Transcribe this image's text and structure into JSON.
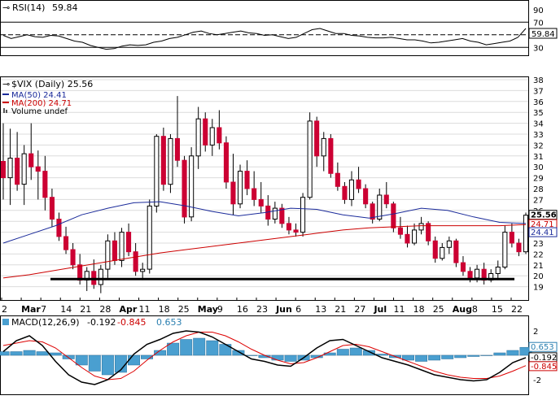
{
  "colors": {
    "up_candle": "#ffffff",
    "down_candle": "#cc0033",
    "wick": "#000000",
    "ma50": "#1a2a9a",
    "ma200": "#cc0000",
    "macd_line": "#000000",
    "signal_line": "#dd0000",
    "histogram": "#4a9fd0",
    "grid": "#dcdcdc",
    "support": "#000000"
  },
  "chart_data": [
    {
      "type": "line",
      "title": "RSI(14)",
      "title_value": "59.84",
      "y_ticks": [
        30,
        50,
        70,
        90
      ],
      "ylim": [
        20,
        100
      ],
      "reference_lines": [
        70,
        50,
        30
      ],
      "last_value_label": "59.84",
      "series": [
        {
          "name": "RSI(14)",
          "values": [
            49,
            44,
            47,
            50,
            47,
            46,
            49,
            48,
            44,
            40,
            38,
            33,
            30,
            27,
            28,
            32,
            34,
            33,
            34,
            38,
            40,
            44,
            46,
            50,
            54,
            56,
            52,
            50,
            52,
            54,
            56,
            53,
            52,
            49,
            50,
            47,
            44,
            46,
            52,
            58,
            60,
            56,
            52,
            52,
            49,
            48,
            46,
            45,
            45,
            46,
            44,
            42,
            42,
            40,
            37,
            38,
            40,
            42,
            44,
            40,
            38,
            34,
            36,
            38,
            40,
            46,
            60
          ]
        }
      ]
    },
    {
      "type": "candlestick",
      "title": "$VIX (Daily)",
      "title_value": "25.56",
      "ylim": [
        18,
        38
      ],
      "y_ticks": [
        19,
        20,
        21,
        22,
        23,
        24,
        25,
        26,
        27,
        28,
        29,
        30,
        31,
        32,
        33,
        34,
        35,
        36,
        37,
        38
      ],
      "x_tick_labels": [
        "2",
        "Mar",
        "7",
        "14",
        "21",
        "28",
        "Apr",
        "11",
        "18",
        "25",
        "May",
        "9",
        "16",
        "23",
        "Jun",
        "6",
        "13",
        "21",
        "27",
        "Jul",
        "11",
        "18",
        "25",
        "Aug",
        "8",
        "15",
        "22"
      ],
      "legend": [
        "$VIX (Daily) 25.56",
        "MA(50) 24.41",
        "MA(200) 24.71",
        "Volume undef"
      ],
      "support_level": 19.7,
      "last_value_labels": {
        "close": "25.56",
        "ma50": "24.41",
        "ma200": "24.71"
      },
      "candles": [
        {
          "o": 30.5,
          "h": 34.0,
          "l": 27.0,
          "c": 29.0
        },
        {
          "o": 29.0,
          "h": 33.5,
          "l": 26.5,
          "c": 30.8
        },
        {
          "o": 30.8,
          "h": 33.2,
          "l": 27.8,
          "c": 28.4
        },
        {
          "o": 28.4,
          "h": 32.0,
          "l": 26.5,
          "c": 31.2
        },
        {
          "o": 31.2,
          "h": 34.0,
          "l": 28.8,
          "c": 30.0
        },
        {
          "o": 30.0,
          "h": 31.5,
          "l": 27.0,
          "c": 29.6
        },
        {
          "o": 29.6,
          "h": 31.0,
          "l": 26.0,
          "c": 27.2
        },
        {
          "o": 27.2,
          "h": 28.0,
          "l": 24.5,
          "c": 25.2
        },
        {
          "o": 25.2,
          "h": 25.8,
          "l": 23.2,
          "c": 23.6
        },
        {
          "o": 23.6,
          "h": 24.5,
          "l": 22.0,
          "c": 22.4
        },
        {
          "o": 22.4,
          "h": 23.0,
          "l": 20.6,
          "c": 21.0
        },
        {
          "o": 21.0,
          "h": 22.0,
          "l": 19.2,
          "c": 19.6
        },
        {
          "o": 19.6,
          "h": 20.8,
          "l": 18.6,
          "c": 20.4
        },
        {
          "o": 20.4,
          "h": 21.5,
          "l": 18.8,
          "c": 19.2
        },
        {
          "o": 19.2,
          "h": 21.0,
          "l": 18.4,
          "c": 20.6
        },
        {
          "o": 20.6,
          "h": 23.8,
          "l": 19.8,
          "c": 23.2
        },
        {
          "o": 23.2,
          "h": 24.0,
          "l": 21.0,
          "c": 21.4
        },
        {
          "o": 21.4,
          "h": 24.4,
          "l": 20.8,
          "c": 24.0
        },
        {
          "o": 24.0,
          "h": 24.8,
          "l": 21.8,
          "c": 22.2
        },
        {
          "o": 22.2,
          "h": 23.0,
          "l": 20.0,
          "c": 20.4
        },
        {
          "o": 20.4,
          "h": 21.2,
          "l": 19.6,
          "c": 20.6
        },
        {
          "o": 20.6,
          "h": 27.0,
          "l": 20.2,
          "c": 26.4
        },
        {
          "o": 26.4,
          "h": 33.0,
          "l": 25.8,
          "c": 32.8
        },
        {
          "o": 32.8,
          "h": 33.6,
          "l": 27.8,
          "c": 28.4
        },
        {
          "o": 28.4,
          "h": 33.0,
          "l": 27.6,
          "c": 32.6
        },
        {
          "o": 32.6,
          "h": 36.5,
          "l": 30.0,
          "c": 30.6
        },
        {
          "o": 30.6,
          "h": 31.0,
          "l": 24.8,
          "c": 25.4
        },
        {
          "o": 25.4,
          "h": 31.8,
          "l": 25.0,
          "c": 31.0
        },
        {
          "o": 31.0,
          "h": 35.5,
          "l": 29.8,
          "c": 34.4
        },
        {
          "o": 34.4,
          "h": 35.0,
          "l": 31.4,
          "c": 32.0
        },
        {
          "o": 32.0,
          "h": 34.4,
          "l": 31.0,
          "c": 33.6
        },
        {
          "o": 33.6,
          "h": 35.2,
          "l": 31.6,
          "c": 32.2
        },
        {
          "o": 32.2,
          "h": 32.8,
          "l": 28.0,
          "c": 28.6
        },
        {
          "o": 28.6,
          "h": 31.2,
          "l": 25.6,
          "c": 26.6
        },
        {
          "o": 26.6,
          "h": 30.2,
          "l": 26.2,
          "c": 29.6
        },
        {
          "o": 29.6,
          "h": 30.6,
          "l": 27.4,
          "c": 28.0
        },
        {
          "o": 28.0,
          "h": 29.6,
          "l": 26.4,
          "c": 27.0
        },
        {
          "o": 27.0,
          "h": 28.6,
          "l": 25.8,
          "c": 26.4
        },
        {
          "o": 26.4,
          "h": 27.4,
          "l": 24.6,
          "c": 25.2
        },
        {
          "o": 25.2,
          "h": 26.8,
          "l": 24.8,
          "c": 26.2
        },
        {
          "o": 26.2,
          "h": 26.6,
          "l": 24.4,
          "c": 24.8
        },
        {
          "o": 24.8,
          "h": 25.4,
          "l": 23.8,
          "c": 24.2
        },
        {
          "o": 24.2,
          "h": 24.8,
          "l": 23.6,
          "c": 24.0
        },
        {
          "o": 24.0,
          "h": 27.6,
          "l": 23.6,
          "c": 27.2
        },
        {
          "o": 27.2,
          "h": 35.0,
          "l": 27.0,
          "c": 34.2
        },
        {
          "o": 34.2,
          "h": 34.6,
          "l": 30.0,
          "c": 31.0
        },
        {
          "o": 31.0,
          "h": 33.2,
          "l": 29.6,
          "c": 32.6
        },
        {
          "o": 32.6,
          "h": 33.0,
          "l": 29.0,
          "c": 29.4
        },
        {
          "o": 29.4,
          "h": 30.4,
          "l": 27.8,
          "c": 28.2
        },
        {
          "o": 28.2,
          "h": 28.6,
          "l": 26.6,
          "c": 27.0
        },
        {
          "o": 27.0,
          "h": 29.6,
          "l": 26.4,
          "c": 28.8
        },
        {
          "o": 28.8,
          "h": 30.0,
          "l": 27.6,
          "c": 28.0
        },
        {
          "o": 28.0,
          "h": 28.4,
          "l": 26.2,
          "c": 26.6
        },
        {
          "o": 26.6,
          "h": 26.8,
          "l": 24.8,
          "c": 25.2
        },
        {
          "o": 25.2,
          "h": 28.0,
          "l": 25.0,
          "c": 27.4
        },
        {
          "o": 27.4,
          "h": 28.6,
          "l": 26.2,
          "c": 26.6
        },
        {
          "o": 26.6,
          "h": 26.8,
          "l": 24.0,
          "c": 24.4
        },
        {
          "o": 24.4,
          "h": 25.4,
          "l": 23.4,
          "c": 23.8
        },
        {
          "o": 23.8,
          "h": 24.6,
          "l": 22.6,
          "c": 23.0
        },
        {
          "o": 23.0,
          "h": 24.8,
          "l": 22.8,
          "c": 24.2
        },
        {
          "o": 24.2,
          "h": 25.4,
          "l": 23.8,
          "c": 24.8
        },
        {
          "o": 24.8,
          "h": 25.0,
          "l": 22.8,
          "c": 23.2
        },
        {
          "o": 23.2,
          "h": 23.6,
          "l": 21.2,
          "c": 21.6
        },
        {
          "o": 21.6,
          "h": 23.0,
          "l": 21.4,
          "c": 22.6
        },
        {
          "o": 22.6,
          "h": 23.6,
          "l": 22.0,
          "c": 23.2
        },
        {
          "o": 23.2,
          "h": 23.4,
          "l": 20.8,
          "c": 21.2
        },
        {
          "o": 21.2,
          "h": 21.8,
          "l": 20.0,
          "c": 20.4
        },
        {
          "o": 20.4,
          "h": 20.8,
          "l": 19.4,
          "c": 19.8
        },
        {
          "o": 19.8,
          "h": 21.0,
          "l": 19.4,
          "c": 20.6
        },
        {
          "o": 20.6,
          "h": 21.2,
          "l": 19.2,
          "c": 19.6
        },
        {
          "o": 19.6,
          "h": 20.6,
          "l": 19.4,
          "c": 20.2
        },
        {
          "o": 20.2,
          "h": 21.4,
          "l": 19.6,
          "c": 20.8
        },
        {
          "o": 20.8,
          "h": 24.6,
          "l": 20.6,
          "c": 24.0
        },
        {
          "o": 24.0,
          "h": 24.8,
          "l": 22.6,
          "c": 23.0
        },
        {
          "o": 23.0,
          "h": 23.4,
          "l": 21.8,
          "c": 22.2
        },
        {
          "o": 22.2,
          "h": 25.8,
          "l": 22.0,
          "c": 25.56
        }
      ],
      "ma50": [
        23.0,
        23.8,
        24.6,
        25.6,
        26.2,
        26.7,
        26.8,
        26.4,
        25.9,
        25.5,
        25.8,
        26.2,
        26.1,
        25.6,
        25.3,
        25.7,
        26.2,
        26.0,
        25.4,
        24.9,
        24.8
      ],
      "ma200": [
        19.8,
        20.1,
        20.5,
        20.9,
        21.3,
        21.7,
        22.1,
        22.4,
        22.7,
        23.0,
        23.3,
        23.6,
        23.9,
        24.2,
        24.4,
        24.5,
        24.6,
        24.6,
        24.6,
        24.6,
        24.7
      ]
    },
    {
      "type": "bar",
      "title": "MACD(12,26,9)",
      "values_text": [
        "-0.192",
        "-0.845",
        "0.653"
      ],
      "ylim": [
        -3,
        3
      ],
      "y_ticks": [
        -2,
        0,
        2
      ],
      "last_value_labels": {
        "histogram": "0.653",
        "macd": "-0.192",
        "signal": "-0.845"
      },
      "series": [
        {
          "name": "MACD",
          "values": [
            0.3,
            1.2,
            1.6,
            0.8,
            -0.5,
            -1.6,
            -2.2,
            -2.4,
            -2.0,
            -1.2,
            0.1,
            0.9,
            1.3,
            1.8,
            2.0,
            1.9,
            1.5,
            0.9,
            0.3,
            -0.3,
            -0.5,
            -0.8,
            -0.9,
            -0.2,
            0.6,
            1.2,
            1.3,
            0.8,
            0.3,
            -0.2,
            -0.5,
            -0.8,
            -1.2,
            -1.6,
            -1.8,
            -2.0,
            -2.1,
            -2.0,
            -1.4,
            -0.6,
            -0.192
          ]
        },
        {
          "name": "Signal",
          "values": [
            0.8,
            1.0,
            1.2,
            1.1,
            0.6,
            -0.2,
            -1.0,
            -1.7,
            -2.0,
            -1.9,
            -1.3,
            -0.4,
            0.4,
            1.1,
            1.6,
            1.9,
            1.9,
            1.6,
            1.1,
            0.5,
            0.0,
            -0.4,
            -0.7,
            -0.6,
            -0.2,
            0.3,
            0.8,
            0.9,
            0.7,
            0.3,
            -0.1,
            -0.5,
            -0.9,
            -1.3,
            -1.6,
            -1.8,
            -1.9,
            -1.9,
            -1.7,
            -1.3,
            -0.845
          ]
        },
        {
          "name": "Histogram",
          "values": [
            0.3,
            0.3,
            0.4,
            0.3,
            0.2,
            -0.3,
            -0.8,
            -1.3,
            -1.6,
            -1.4,
            -0.8,
            -0.3,
            0.4,
            1.0,
            1.3,
            1.4,
            1.2,
            0.9,
            0.4,
            0.0,
            -0.2,
            -0.4,
            -0.5,
            -0.4,
            -0.2,
            0.2,
            0.5,
            0.6,
            0.4,
            0.1,
            -0.2,
            -0.4,
            -0.5,
            -0.4,
            -0.3,
            -0.2,
            -0.1,
            0.0,
            0.2,
            0.4,
            0.653
          ]
        }
      ]
    }
  ]
}
